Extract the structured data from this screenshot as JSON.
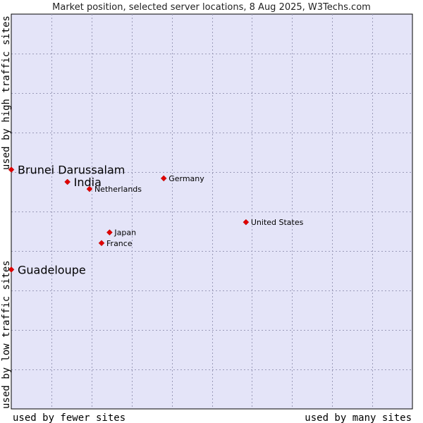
{
  "chart_data": {
    "type": "scatter",
    "title": "Market position, selected server locations, 8 Aug 2025, W3Techs.com",
    "xlabel_low": "used by fewer sites",
    "xlabel_high": "used by many sites",
    "ylabel_low": "used by low traffic sites",
    "ylabel_high": "used by high traffic sites",
    "xlim": [
      0,
      10
    ],
    "ylim": [
      0,
      10
    ],
    "grid": true,
    "colors": {
      "plot_bg": "#e4e4f8",
      "marker": "#e00000",
      "grid": "#9a9ab8",
      "border": "#000000"
    },
    "points": [
      {
        "name": "Brunei Darussalam",
        "x": 0.0,
        "y": 6.06,
        "highlight": true
      },
      {
        "name": "India",
        "x": 1.4,
        "y": 5.75,
        "highlight": true
      },
      {
        "name": "Guadeloupe",
        "x": 0.0,
        "y": 3.53,
        "highlight": true
      },
      {
        "name": "Netherlands",
        "x": 1.95,
        "y": 5.57,
        "highlight": false
      },
      {
        "name": "Germany",
        "x": 3.8,
        "y": 5.84,
        "highlight": false
      },
      {
        "name": "United States",
        "x": 5.85,
        "y": 4.73,
        "highlight": false
      },
      {
        "name": "Japan",
        "x": 2.45,
        "y": 4.47,
        "highlight": false
      },
      {
        "name": "France",
        "x": 2.25,
        "y": 4.2,
        "highlight": false
      }
    ]
  }
}
